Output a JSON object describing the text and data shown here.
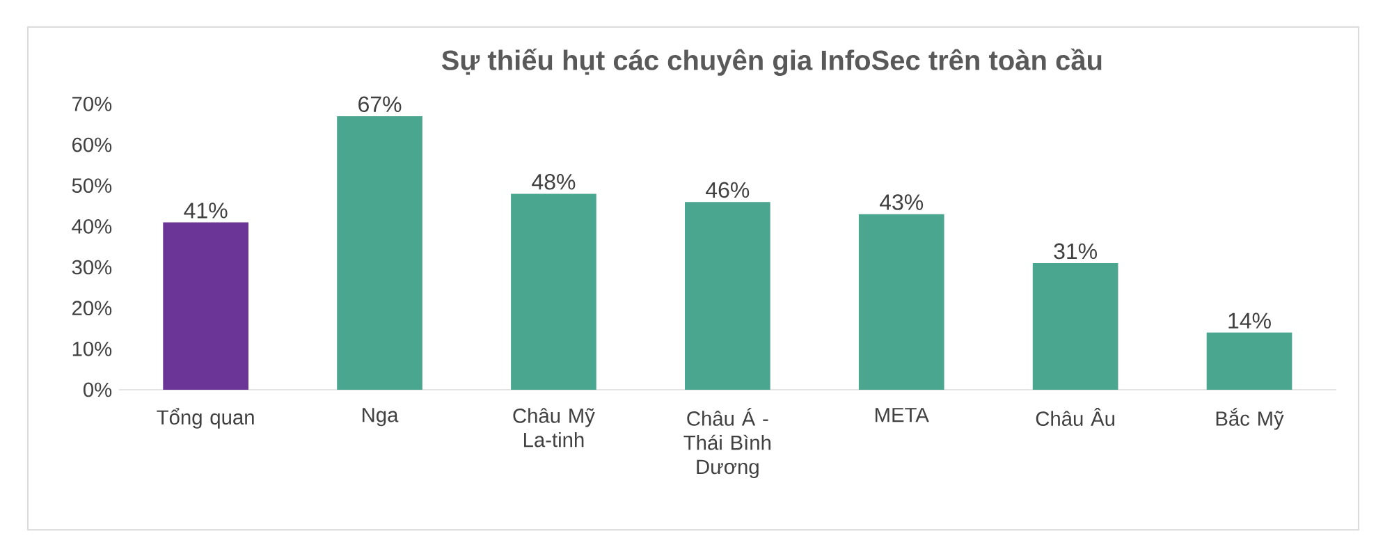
{
  "chart_data": {
    "type": "bar",
    "title": "Sự thiếu hụt các chuyên gia InfoSec trên toàn cầu",
    "categories": [
      "Tổng quan",
      "Nga",
      "Châu Mỹ La-tinh",
      "Châu Á - Thái Bình Dương",
      "META",
      "Châu Âu",
      "Bắc Mỹ"
    ],
    "values": [
      41,
      67,
      48,
      46,
      43,
      31,
      14
    ],
    "colors": [
      "#6a3596",
      "#4aa68e",
      "#4aa68e",
      "#4aa68e",
      "#4aa68e",
      "#4aa68e",
      "#4aa68e"
    ],
    "value_labels": [
      "41%",
      "67%",
      "48%",
      "46%",
      "43%",
      "31%",
      "14%"
    ],
    "ylim": [
      0,
      70
    ],
    "yticks": [
      {
        "value": 0,
        "label": "0%"
      },
      {
        "value": 10,
        "label": "10%"
      },
      {
        "value": 20,
        "label": "20%"
      },
      {
        "value": 30,
        "label": "30%"
      },
      {
        "value": 40,
        "label": "40%"
      },
      {
        "value": 50,
        "label": "50%"
      },
      {
        "value": 60,
        "label": "60%"
      },
      {
        "value": 70,
        "label": "70%"
      }
    ],
    "grid": false
  }
}
